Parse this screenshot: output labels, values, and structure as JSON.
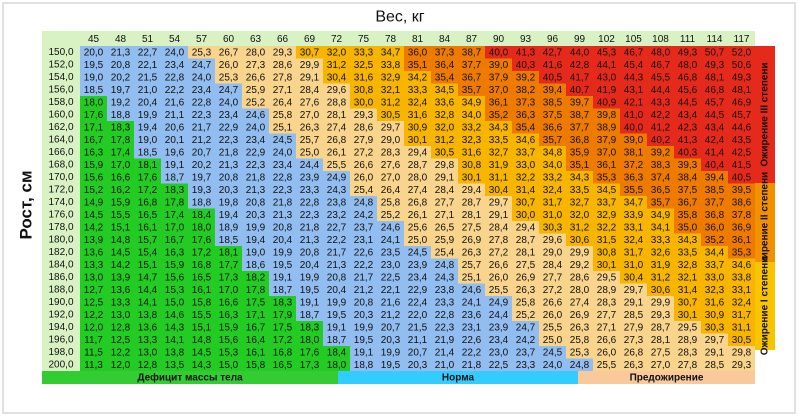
{
  "header": {
    "title": "Вес, кг",
    "y_label": "Рост, см"
  },
  "table": {
    "columns": [
      45,
      48,
      51,
      54,
      57,
      60,
      63,
      66,
      69,
      72,
      75,
      78,
      81,
      84,
      87,
      90,
      93,
      96,
      99,
      102,
      105,
      108,
      111,
      114,
      117
    ],
    "rows": [
      {
        "height": "150,0",
        "values": [
          "20,0",
          "21,3",
          "22,7",
          "24,0",
          "25,3",
          "26,7",
          "28,0",
          "29,3",
          "30,7",
          "32,0",
          "33,3",
          "34,7",
          "36,0",
          "37,3",
          "38,7",
          "40,0",
          "41,3",
          "42,7",
          "44,0",
          "45,3",
          "46,7",
          "48,0",
          "49,3",
          "50,7",
          "52,0"
        ]
      },
      {
        "height": "152,0",
        "values": [
          "19,5",
          "20,8",
          "22,1",
          "23,4",
          "24,7",
          "26,0",
          "27,3",
          "28,6",
          "29,9",
          "31,2",
          "32,5",
          "33,8",
          "35,1",
          "36,4",
          "37,7",
          "39,0",
          "40,3",
          "41,6",
          "42,8",
          "44,1",
          "45,4",
          "46,7",
          "48,0",
          "49,3",
          "50,6"
        ]
      },
      {
        "height": "154,0",
        "values": [
          "19,0",
          "20,2",
          "21,5",
          "22,8",
          "24,0",
          "25,3",
          "26,6",
          "27,8",
          "29,1",
          "30,4",
          "31,6",
          "32,9",
          "34,2",
          "35,4",
          "36,7",
          "37,9",
          "39,2",
          "40,5",
          "41,7",
          "43,0",
          "44,3",
          "45,5",
          "46,8",
          "48,1",
          "49,3"
        ]
      },
      {
        "height": "156,0",
        "values": [
          "18,5",
          "19,7",
          "21,0",
          "22,2",
          "23,4",
          "24,7",
          "25,9",
          "27,1",
          "28,4",
          "29,6",
          "30,8",
          "32,1",
          "33,3",
          "34,5",
          "35,7",
          "37,0",
          "38,2",
          "39,4",
          "40,7",
          "41,9",
          "43,1",
          "44,4",
          "45,6",
          "46,8",
          "48,1"
        ]
      },
      {
        "height": "158,0",
        "values": [
          "18,0",
          "19,2",
          "20,4",
          "21,6",
          "22,8",
          "24,0",
          "25,2",
          "26,4",
          "27,6",
          "28,8",
          "30,0",
          "31,2",
          "32,4",
          "33,6",
          "34,9",
          "36,1",
          "37,3",
          "38,5",
          "39,7",
          "40,9",
          "42,1",
          "43,3",
          "44,5",
          "45,7",
          "46,9"
        ]
      },
      {
        "height": "160,0",
        "values": [
          "17,6",
          "18,8",
          "19,9",
          "21,1",
          "22,3",
          "23,4",
          "24,6",
          "25,8",
          "27,0",
          "28,1",
          "29,3",
          "30,5",
          "31,6",
          "32,8",
          "34,0",
          "35,2",
          "36,3",
          "37,5",
          "38,7",
          "39,8",
          "41,0",
          "42,2",
          "43,4",
          "44,5",
          "45,7"
        ]
      },
      {
        "height": "162,0",
        "values": [
          "17,1",
          "18,3",
          "19,4",
          "20,6",
          "21,7",
          "22,9",
          "24,0",
          "25,1",
          "26,3",
          "27,4",
          "28,6",
          "29,7",
          "30,9",
          "32,0",
          "33,2",
          "34,3",
          "35,4",
          "36,6",
          "37,7",
          "38,9",
          "40,0",
          "41,2",
          "42,3",
          "43,4",
          "44,6"
        ]
      },
      {
        "height": "164,0",
        "values": [
          "16,7",
          "17,8",
          "19,0",
          "20,1",
          "21,2",
          "22,3",
          "23,4",
          "24,5",
          "25,7",
          "26,8",
          "27,9",
          "29,0",
          "30,1",
          "31,2",
          "32,3",
          "33,5",
          "34,6",
          "35,7",
          "36,8",
          "37,9",
          "39,0",
          "40,2",
          "41,3",
          "42,4",
          "43,5"
        ]
      },
      {
        "height": "166,0",
        "values": [
          "16,3",
          "17,4",
          "18,5",
          "19,6",
          "20,7",
          "21,8",
          "22,9",
          "24,0",
          "25,0",
          "26,1",
          "27,2",
          "28,3",
          "29,4",
          "30,5",
          "31,6",
          "32,7",
          "33,7",
          "34,8",
          "35,9",
          "37,0",
          "38,1",
          "39,2",
          "40,3",
          "41,4",
          "42,5"
        ]
      },
      {
        "height": "168,0",
        "values": [
          "15,9",
          "17,0",
          "18,1",
          "19,1",
          "20,2",
          "21,3",
          "22,3",
          "23,4",
          "24,4",
          "25,5",
          "26,6",
          "27,6",
          "28,7",
          "29,8",
          "30,8",
          "31,9",
          "33,0",
          "34,0",
          "35,1",
          "36,1",
          "37,2",
          "38,3",
          "39,3",
          "40,4",
          "41,5"
        ]
      },
      {
        "height": "170,0",
        "values": [
          "15,6",
          "16,6",
          "17,6",
          "18,7",
          "19,7",
          "20,8",
          "21,8",
          "22,8",
          "23,9",
          "24,9",
          "26,0",
          "27,0",
          "28,0",
          "29,1",
          "30,1",
          "31,1",
          "32,2",
          "33,2",
          "34,3",
          "35,3",
          "36,3",
          "37,4",
          "38,4",
          "39,4",
          "40,5"
        ]
      },
      {
        "height": "172,0",
        "values": [
          "15,2",
          "16,2",
          "17,2",
          "18,3",
          "19,3",
          "20,3",
          "21,3",
          "22,3",
          "23,3",
          "24,3",
          "25,4",
          "26,4",
          "27,4",
          "28,4",
          "29,4",
          "30,4",
          "31,4",
          "32,4",
          "33,5",
          "34,5",
          "35,5",
          "36,5",
          "37,5",
          "38,5",
          "39,5"
        ]
      },
      {
        "height": "174,0",
        "values": [
          "14,9",
          "15,9",
          "16,8",
          "17,8",
          "18,8",
          "19,8",
          "20,8",
          "21,8",
          "22,8",
          "23,8",
          "24,8",
          "25,8",
          "26,8",
          "27,7",
          "28,7",
          "29,7",
          "30,7",
          "31,7",
          "32,7",
          "33,7",
          "34,7",
          "35,7",
          "36,7",
          "37,7",
          "38,6"
        ]
      },
      {
        "height": "176,0",
        "values": [
          "14,5",
          "15,5",
          "16,5",
          "17,4",
          "18,4",
          "19,4",
          "20,3",
          "21,3",
          "22,3",
          "23,2",
          "24,2",
          "25,2",
          "26,1",
          "27,1",
          "28,1",
          "29,1",
          "30,0",
          "31,0",
          "32,0",
          "32,9",
          "33,9",
          "34,9",
          "35,8",
          "36,8",
          "37,8"
        ]
      },
      {
        "height": "178,0",
        "values": [
          "14,2",
          "15,1",
          "16,1",
          "17,0",
          "18,0",
          "18,9",
          "19,9",
          "20,8",
          "21,8",
          "22,7",
          "23,7",
          "24,6",
          "25,6",
          "26,5",
          "27,5",
          "28,4",
          "29,4",
          "30,3",
          "31,2",
          "32,2",
          "33,1",
          "34,1",
          "35,0",
          "36,0",
          "36,9"
        ]
      },
      {
        "height": "180,0",
        "values": [
          "13,9",
          "14,8",
          "15,7",
          "16,7",
          "17,6",
          "18,5",
          "19,4",
          "20,4",
          "21,3",
          "22,2",
          "23,1",
          "24,1",
          "25,0",
          "25,9",
          "26,9",
          "27,8",
          "28,7",
          "29,6",
          "30,6",
          "31,5",
          "32,4",
          "33,3",
          "34,3",
          "35,2",
          "36,1"
        ]
      },
      {
        "height": "182,0",
        "values": [
          "13,6",
          "14,5",
          "15,4",
          "16,3",
          "17,2",
          "18,1",
          "19,0",
          "19,9",
          "20,8",
          "21,7",
          "22,6",
          "23,5",
          "24,5",
          "25,4",
          "26,3",
          "27,2",
          "28,1",
          "29,0",
          "29,9",
          "30,8",
          "31,7",
          "32,6",
          "33,5",
          "34,4",
          "35,3"
        ]
      },
      {
        "height": "184,0",
        "values": [
          "13,3",
          "14,2",
          "15,1",
          "15,9",
          "16,8",
          "17,7",
          "18,6",
          "19,5",
          "20,4",
          "21,3",
          "22,2",
          "23,0",
          "23,9",
          "24,8",
          "25,7",
          "26,6",
          "27,5",
          "28,4",
          "29,2",
          "30,1",
          "31,0",
          "31,9",
          "32,8",
          "33,7",
          "34,6"
        ]
      },
      {
        "height": "186,0",
        "values": [
          "13,0",
          "13,9",
          "14,7",
          "15,6",
          "16,5",
          "17,3",
          "18,2",
          "19,1",
          "19,9",
          "20,8",
          "21,7",
          "22,5",
          "23,4",
          "24,3",
          "25,1",
          "26,0",
          "26,9",
          "27,7",
          "28,6",
          "29,5",
          "30,4",
          "31,2",
          "32,1",
          "33,0",
          "33,8"
        ]
      },
      {
        "height": "188,0",
        "values": [
          "12,7",
          "13,6",
          "14,4",
          "15,3",
          "16,1",
          "17,0",
          "17,8",
          "18,7",
          "19,5",
          "20,4",
          "21,2",
          "22,1",
          "22,9",
          "23,8",
          "24,6",
          "25,5",
          "26,3",
          "27,2",
          "28,0",
          "28,9",
          "29,7",
          "30,6",
          "31,4",
          "32,3",
          "33,1"
        ]
      },
      {
        "height": "190,0",
        "values": [
          "12,5",
          "13,3",
          "14,1",
          "15,0",
          "15,8",
          "16,6",
          "17,5",
          "18,3",
          "19,1",
          "19,9",
          "20,8",
          "21,6",
          "22,4",
          "23,3",
          "24,1",
          "24,9",
          "25,8",
          "26,6",
          "27,4",
          "28,3",
          "29,1",
          "29,9",
          "30,7",
          "31,6",
          "32,4"
        ]
      },
      {
        "height": "192,0",
        "values": [
          "12,2",
          "13,0",
          "13,8",
          "14,6",
          "15,5",
          "16,3",
          "17,1",
          "17,9",
          "18,7",
          "19,5",
          "20,3",
          "21,2",
          "22,0",
          "22,8",
          "23,6",
          "24,4",
          "25,2",
          "26,0",
          "26,9",
          "27,7",
          "28,5",
          "29,3",
          "30,1",
          "30,9",
          "31,7"
        ]
      },
      {
        "height": "194,0",
        "values": [
          "12,0",
          "12,8",
          "13,6",
          "14,3",
          "15,1",
          "15,9",
          "16,7",
          "17,5",
          "18,3",
          "19,1",
          "19,9",
          "20,7",
          "21,5",
          "22,3",
          "23,1",
          "23,9",
          "24,7",
          "25,5",
          "26,3",
          "27,1",
          "27,9",
          "28,7",
          "29,5",
          "30,3",
          "31,1"
        ]
      },
      {
        "height": "196,0",
        "values": [
          "11,7",
          "12,5",
          "13,3",
          "14,1",
          "14,8",
          "15,6",
          "16,4",
          "17,2",
          "18,0",
          "18,7",
          "19,5",
          "20,3",
          "21,1",
          "21,9",
          "22,6",
          "23,4",
          "24,2",
          "25,0",
          "25,8",
          "26,6",
          "27,3",
          "28,1",
          "28,9",
          "29,7",
          "30,5"
        ]
      },
      {
        "height": "198,0",
        "values": [
          "11,5",
          "12,2",
          "13,0",
          "13,8",
          "14,5",
          "15,3",
          "16,1",
          "16,8",
          "17,6",
          "18,4",
          "19,1",
          "19,9",
          "20,7",
          "21,4",
          "22,2",
          "23,0",
          "23,7",
          "24,5",
          "25,3",
          "26,0",
          "26,8",
          "27,5",
          "28,3",
          "29,1",
          "29,8"
        ]
      },
      {
        "height": "200,0",
        "values": [
          "11,3",
          "12,0",
          "12,8",
          "13,5",
          "14,3",
          "15,0",
          "15,8",
          "16,5",
          "17,3",
          "18,0",
          "18,8",
          "19,5",
          "20,3",
          "21,0",
          "21,8",
          "22,5",
          "23,3",
          "24,0",
          "24,8",
          "25,5",
          "26,3",
          "27,0",
          "27,8",
          "28,5",
          "29,3"
        ]
      }
    ]
  },
  "legend": {
    "bottom": [
      "Дефицит массы тела",
      "Норма",
      "Предожирение"
    ],
    "right": [
      "Ожирение III степени",
      "Ожирение II степени",
      "Ожирение I степени"
    ]
  }
}
